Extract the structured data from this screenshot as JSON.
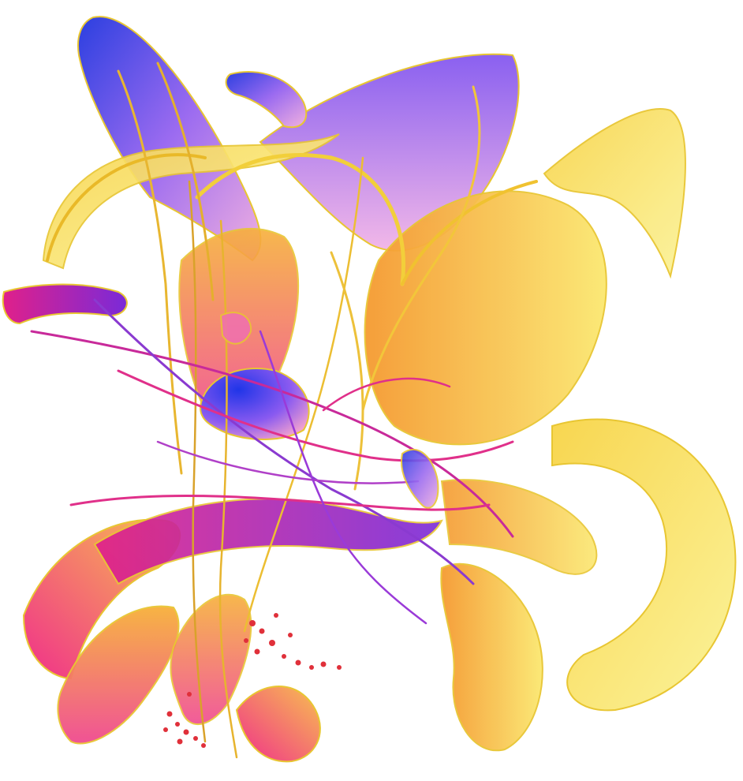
{
  "artwork": {
    "colors": {
      "background": "#ffffff",
      "blue": "#2b3fe0",
      "violet": "#9b6bf0",
      "lilac": "#d8a8f0",
      "magenta": "#e0208a",
      "pink": "#f0508a",
      "orange": "#f5a030",
      "gold": "#f7c840",
      "yellow": "#f7ee70",
      "pale_yellow": "#fbf39a",
      "red_dot": "#e0303a"
    }
  }
}
